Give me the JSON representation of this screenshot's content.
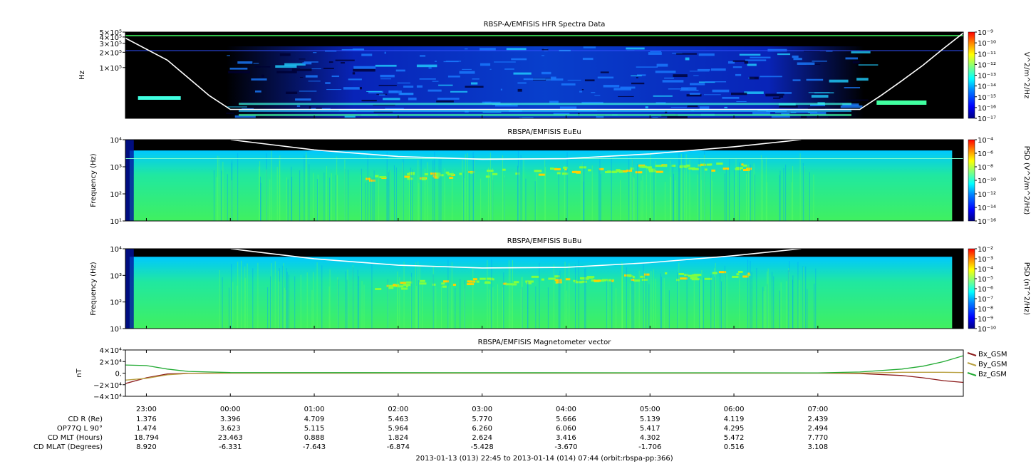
{
  "chart_data": [
    {
      "type": "heatmap",
      "title": "RBSP-A/EMFISIS  HFR Spectra Data",
      "ylabel": "Hz",
      "y_scale": "log",
      "y_ticks": [
        "5×10⁵",
        "4×10⁵",
        "3×10⁵",
        "2×10⁵",
        "1×10⁵"
      ],
      "y_tick_values": [
        500000,
        400000,
        300000,
        200000,
        100000
      ],
      "ylim": [
        10000,
        500000
      ],
      "colorbar_label": "V^2/m^2/Hz",
      "colorbar_ticks": [
        "10⁻⁹",
        "10⁻¹⁰",
        "10⁻¹¹",
        "10⁻¹²",
        "10⁻¹³",
        "10⁻¹⁴",
        "10⁻¹⁵",
        "10⁻¹⁶",
        "10⁻¹⁷"
      ],
      "overlay_curve_hz": {
        "x_hours": [
          -1.25,
          -0.75,
          -0.25,
          0.0,
          7.5,
          7.75,
          8.0,
          8.25,
          8.5,
          8.733
        ],
        "y": [
          380000,
          140000,
          28000,
          15000,
          15000,
          28000,
          55000,
          110000,
          240000,
          480000
        ]
      }
    },
    {
      "type": "heatmap",
      "title": "RBSPA/EMFISIS  EuEu",
      "ylabel": "Frequency (Hz)",
      "y_scale": "log",
      "y_ticks": [
        "10⁴",
        "10³",
        "10²",
        "10¹"
      ],
      "y_tick_values": [
        10000,
        1000,
        100,
        10
      ],
      "ylim": [
        10,
        10000
      ],
      "colorbar_label": "PSD (V^2/m^2/Hz)",
      "colorbar_ticks": [
        "10⁻⁴",
        "10⁻⁶",
        "10⁻⁸",
        "10⁻¹⁰",
        "10⁻¹²",
        "10⁻¹⁴",
        "10⁻¹⁶"
      ],
      "overlay_curve_hz": {
        "x_hours": [
          0.0,
          1.0,
          2.0,
          3.0,
          4.0,
          5.0,
          6.0,
          6.8
        ],
        "y": [
          10000,
          4200,
          2400,
          1900,
          2000,
          3000,
          5500,
          10000
        ]
      }
    },
    {
      "type": "heatmap",
      "title": "RBSPA/EMFISIS  BuBu",
      "ylabel": "Frequency (Hz)",
      "y_scale": "log",
      "y_ticks": [
        "10⁴",
        "10³",
        "10²",
        "10¹"
      ],
      "y_tick_values": [
        10000,
        1000,
        100,
        10
      ],
      "ylim": [
        10,
        10000
      ],
      "colorbar_label": "PSD (nT^2/Hz)",
      "colorbar_ticks": [
        "10⁻²",
        "10⁻³",
        "10⁻⁴",
        "10⁻⁵",
        "10⁻⁶",
        "10⁻⁷",
        "10⁻⁸",
        "10⁻⁹",
        "10⁻¹⁰"
      ],
      "overlay_curve_hz": {
        "x_hours": [
          0.0,
          1.0,
          2.0,
          3.0,
          4.0,
          5.0,
          6.0,
          6.8
        ],
        "y": [
          10000,
          4200,
          2400,
          1900,
          2000,
          3000,
          5500,
          10000
        ]
      }
    },
    {
      "type": "line",
      "title": "RBSPA/EMFISIS  Magnetometer vector",
      "ylabel": "nT",
      "y_ticks": [
        "4×10⁴",
        "2×10⁴",
        "0.",
        "−2×10⁴",
        "−4×10⁴"
      ],
      "y_tick_values": [
        40000,
        20000,
        0,
        -20000,
        -40000
      ],
      "ylim": [
        -40000,
        40000
      ],
      "series": [
        {
          "name": "Bx_GSM",
          "color": "#8b1a1a",
          "x_hours": [
            -1.25,
            -1.0,
            -0.75,
            -0.5,
            0.0,
            7.0,
            7.5,
            8.0,
            8.25,
            8.5,
            8.733
          ],
          "values": [
            -18000,
            -8000,
            -1500,
            -200,
            0,
            0,
            -800,
            -4000,
            -8000,
            -13000,
            -16000
          ]
        },
        {
          "name": "By_GSM",
          "color": "#b8a040",
          "x_hours": [
            -1.25,
            -1.0,
            -0.75,
            -0.5,
            0.0,
            7.5,
            8.0,
            8.5,
            8.733
          ],
          "values": [
            -12000,
            -9000,
            -3000,
            -500,
            0,
            0,
            1500,
            1500,
            1000
          ]
        },
        {
          "name": "Bz_GSM",
          "color": "#22aa33",
          "x_hours": [
            -1.25,
            -1.0,
            -0.75,
            -0.5,
            0.0,
            7.0,
            7.5,
            8.0,
            8.25,
            8.5,
            8.733
          ],
          "values": [
            14000,
            13000,
            7000,
            3000,
            1000,
            500,
            2000,
            7000,
            12000,
            20000,
            30000
          ]
        }
      ]
    }
  ],
  "time_axis": {
    "x_hours_range": [
      -1.25,
      8.733
    ],
    "tick_hours": [
      -1,
      0,
      1,
      2,
      3,
      4,
      5,
      6,
      7
    ],
    "tick_labels": [
      "23:00",
      "00:00",
      "01:00",
      "02:00",
      "03:00",
      "04:00",
      "05:00",
      "06:00",
      "07:00"
    ]
  },
  "ephemeris": [
    {
      "label": "CD R (Re)",
      "values": [
        "1.376",
        "3.396",
        "4.709",
        "5.463",
        "5.770",
        "5.666",
        "5.139",
        "4.119",
        "2.439"
      ]
    },
    {
      "label": "OP77Q L 90°",
      "values": [
        "1.474",
        "3.623",
        "5.115",
        "5.964",
        "6.260",
        "6.060",
        "5.417",
        "4.295",
        "2.494"
      ]
    },
    {
      "label": "CD MLT (Hours)",
      "values": [
        "18.794",
        "23.463",
        "0.888",
        "1.824",
        "2.624",
        "3.416",
        "4.302",
        "5.472",
        "7.770"
      ]
    },
    {
      "label": "CD MLAT (Degrees)",
      "values": [
        "8.920",
        "-6.331",
        "-7.643",
        "-6.874",
        "-5.428",
        "-3.670",
        "-1.706",
        "0.516",
        "3.108"
      ]
    }
  ],
  "footer": "2013-01-13 (013) 22:45 to 2013-01-14 (014) 07:44 (orbit:rbspa-pp:366)",
  "colors": {
    "spectrogram_background": "#000000",
    "colormap": [
      "#00007f",
      "#0000ff",
      "#007fff",
      "#00ffff",
      "#7fff7f",
      "#ffff00",
      "#ff7f00",
      "#ff0000"
    ]
  }
}
